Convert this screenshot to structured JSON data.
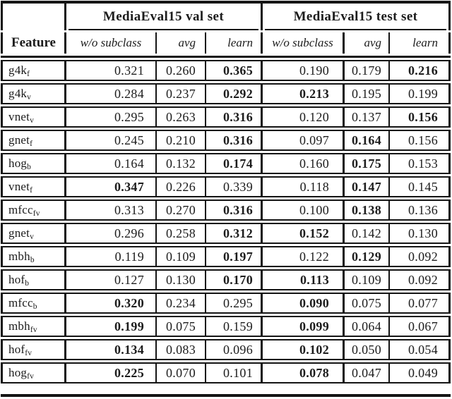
{
  "header": {
    "feature_label": "Feature",
    "val_group_label": "MediaEval15 val set",
    "test_group_label": "MediaEval15 test set",
    "subcolumns": [
      "w/o subclass",
      "avg",
      "learn"
    ]
  },
  "rows": [
    {
      "feature_base": "g4k",
      "feature_sub": "f",
      "values": [
        "0.321",
        "0.260",
        "0.365",
        "0.190",
        "0.179",
        "0.216"
      ],
      "bold": [
        false,
        false,
        true,
        false,
        false,
        true
      ]
    },
    {
      "feature_base": "g4k",
      "feature_sub": "v",
      "values": [
        "0.284",
        "0.237",
        "0.292",
        "0.213",
        "0.195",
        "0.199"
      ],
      "bold": [
        false,
        false,
        true,
        true,
        false,
        false
      ]
    },
    {
      "feature_base": "vnet",
      "feature_sub": "v",
      "values": [
        "0.295",
        "0.263",
        "0.316",
        "0.120",
        "0.137",
        "0.156"
      ],
      "bold": [
        false,
        false,
        true,
        false,
        false,
        true
      ]
    },
    {
      "feature_base": "gnet",
      "feature_sub": "f",
      "values": [
        "0.245",
        "0.210",
        "0.316",
        "0.097",
        "0.164",
        "0.156"
      ],
      "bold": [
        false,
        false,
        true,
        false,
        true,
        false
      ]
    },
    {
      "feature_base": "hog",
      "feature_sub": "b",
      "values": [
        "0.164",
        "0.132",
        "0.174",
        "0.160",
        "0.175",
        "0.153"
      ],
      "bold": [
        false,
        false,
        true,
        false,
        true,
        false
      ]
    },
    {
      "feature_base": "vnet",
      "feature_sub": "f",
      "values": [
        "0.347",
        "0.226",
        "0.339",
        "0.118",
        "0.147",
        "0.145"
      ],
      "bold": [
        true,
        false,
        false,
        false,
        true,
        false
      ]
    },
    {
      "feature_base": "mfcc",
      "feature_sub": "fv",
      "values": [
        "0.313",
        "0.270",
        "0.316",
        "0.100",
        "0.138",
        "0.136"
      ],
      "bold": [
        false,
        false,
        true,
        false,
        true,
        false
      ]
    },
    {
      "feature_base": "gnet",
      "feature_sub": "v",
      "values": [
        "0.296",
        "0.258",
        "0.312",
        "0.152",
        "0.142",
        "0.130"
      ],
      "bold": [
        false,
        false,
        true,
        true,
        false,
        false
      ]
    },
    {
      "feature_base": "mbh",
      "feature_sub": "b",
      "values": [
        "0.119",
        "0.109",
        "0.197",
        "0.122",
        "0.129",
        "0.092"
      ],
      "bold": [
        false,
        false,
        true,
        false,
        true,
        false
      ]
    },
    {
      "feature_base": "hof",
      "feature_sub": "b",
      "values": [
        "0.127",
        "0.130",
        "0.170",
        "0.113",
        "0.109",
        "0.092"
      ],
      "bold": [
        false,
        false,
        true,
        true,
        false,
        false
      ]
    },
    {
      "feature_base": "mfcc",
      "feature_sub": "b",
      "values": [
        "0.320",
        "0.234",
        "0.295",
        "0.090",
        "0.075",
        "0.077"
      ],
      "bold": [
        true,
        false,
        false,
        true,
        false,
        false
      ]
    },
    {
      "feature_base": "mbh",
      "feature_sub": "fv",
      "values": [
        "0.199",
        "0.075",
        "0.159",
        "0.099",
        "0.064",
        "0.067"
      ],
      "bold": [
        true,
        false,
        false,
        true,
        false,
        false
      ]
    },
    {
      "feature_base": "hof",
      "feature_sub": "fv",
      "values": [
        "0.134",
        "0.083",
        "0.096",
        "0.102",
        "0.050",
        "0.054"
      ],
      "bold": [
        true,
        false,
        false,
        true,
        false,
        false
      ]
    },
    {
      "feature_base": "hog",
      "feature_sub": "fv",
      "values": [
        "0.225",
        "0.070",
        "0.101",
        "0.078",
        "0.047",
        "0.049"
      ],
      "bold": [
        true,
        false,
        false,
        true,
        false,
        false
      ]
    }
  ]
}
